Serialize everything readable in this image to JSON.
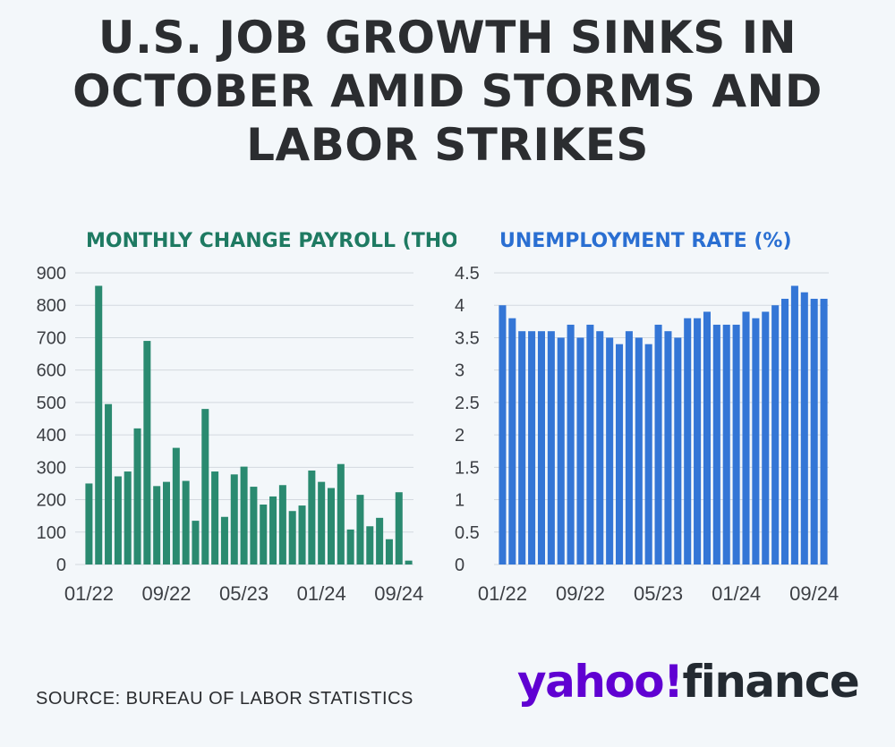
{
  "headline": "U.S. JOB GROWTH SINKS IN OCTOBER AMID STORMS AND LABOR STRIKES",
  "source": "SOURCE: BUREAU OF LABOR STATISTICS",
  "logo": {
    "yahoo": "yahoo!",
    "finance": "finance"
  },
  "colors": {
    "payroll": "#2a8a70",
    "unemployment": "#3476d6",
    "payroll_title": "#1e7a62",
    "unemployment_title": "#2a6fd2",
    "grid": "#d3d9df"
  },
  "chart_data": [
    {
      "type": "bar",
      "title": "MONTHLY CHANGE PAYROLL (THO",
      "x_tick_labels": [
        "01/22",
        "09/22",
        "05/23",
        "01/24",
        "09/24"
      ],
      "y_tick_labels": [
        "0",
        "100",
        "200",
        "300",
        "400",
        "500",
        "600",
        "700",
        "800",
        "900"
      ],
      "ylim": [
        0,
        900
      ],
      "grid": true,
      "categories": [
        "01/22",
        "02/22",
        "03/22",
        "04/22",
        "05/22",
        "06/22",
        "07/22",
        "08/22",
        "09/22",
        "10/22",
        "11/22",
        "12/22",
        "01/23",
        "02/23",
        "03/23",
        "04/23",
        "05/23",
        "06/23",
        "07/23",
        "08/23",
        "09/23",
        "10/23",
        "11/23",
        "12/23",
        "01/24",
        "02/24",
        "03/24",
        "04/24",
        "05/24",
        "06/24",
        "07/24",
        "08/24",
        "09/24",
        "10/24"
      ],
      "values": [
        250,
        860,
        495,
        272,
        287,
        420,
        690,
        242,
        255,
        360,
        258,
        135,
        480,
        287,
        147,
        278,
        302,
        240,
        185,
        210,
        245,
        165,
        182,
        290,
        255,
        236,
        310,
        108,
        215,
        118,
        144,
        78,
        223,
        12
      ]
    },
    {
      "type": "bar",
      "title": "UNEMPLOYMENT RATE (%)",
      "x_tick_labels": [
        "01/22",
        "09/22",
        "05/23",
        "01/24",
        "09/24"
      ],
      "y_tick_labels": [
        "0",
        "0.5",
        "1",
        "1.5",
        "2",
        "2.5",
        "3",
        "3.5",
        "4",
        "4.5"
      ],
      "ylim": [
        0,
        4.5
      ],
      "grid": true,
      "categories": [
        "01/22",
        "02/22",
        "03/22",
        "04/22",
        "05/22",
        "06/22",
        "07/22",
        "08/22",
        "09/22",
        "10/22",
        "11/22",
        "12/22",
        "01/23",
        "02/23",
        "03/23",
        "04/23",
        "05/23",
        "06/23",
        "07/23",
        "08/23",
        "09/23",
        "10/23",
        "11/23",
        "12/23",
        "01/24",
        "02/24",
        "03/24",
        "04/24",
        "05/24",
        "06/24",
        "07/24",
        "08/24",
        "09/24",
        "10/24"
      ],
      "values": [
        4.0,
        3.8,
        3.6,
        3.6,
        3.6,
        3.6,
        3.5,
        3.7,
        3.5,
        3.7,
        3.6,
        3.5,
        3.4,
        3.6,
        3.5,
        3.4,
        3.7,
        3.6,
        3.5,
        3.8,
        3.8,
        3.9,
        3.7,
        3.7,
        3.7,
        3.9,
        3.8,
        3.9,
        4.0,
        4.1,
        4.3,
        4.2,
        4.1,
        4.1
      ]
    }
  ]
}
